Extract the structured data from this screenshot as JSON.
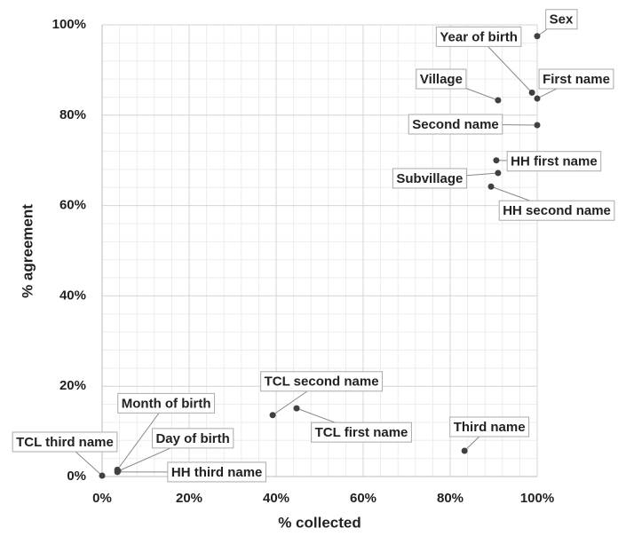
{
  "chart_data": {
    "type": "scatter",
    "xlabel": "% collected",
    "ylabel": "% agreement",
    "point_labels": [
      "Sex",
      "Year of birth",
      "First name",
      "Village",
      "Second name",
      "HH first name",
      "Subvillage",
      "HH second name",
      "TCL second name",
      "TCL first name",
      "Third name",
      "Month of birth",
      "Day of birth",
      "HH third name",
      "TCL third name"
    ],
    "x": [
      100,
      98.8,
      100,
      91,
      100,
      90.6,
      91,
      89.4,
      39.2,
      44.7,
      83.3,
      3.5,
      3.7,
      3.5,
      0
    ],
    "values": [
      97.5,
      85,
      83.7,
      83.3,
      77.8,
      70,
      67.2,
      64.2,
      13.6,
      15.1,
      5.7,
      1.5,
      1.2,
      1.0,
      0.2
    ],
    "color": "#404040",
    "xlim": [
      0,
      100
    ],
    "ylim": [
      0,
      100
    ],
    "xticks": [
      {
        "value": 0,
        "label": "0%"
      },
      {
        "value": 20,
        "label": "20%"
      },
      {
        "value": 40,
        "label": "40%"
      },
      {
        "value": 60,
        "label": "60%"
      },
      {
        "value": 80,
        "label": "80%"
      },
      {
        "value": 100,
        "label": "100%"
      }
    ],
    "yticks": [
      {
        "value": 0,
        "label": "0%"
      },
      {
        "value": 20,
        "label": "20%"
      },
      {
        "value": 40,
        "label": "40%"
      },
      {
        "value": 60,
        "label": "60%"
      },
      {
        "value": 80,
        "label": "80%"
      },
      {
        "value": 100,
        "label": "100%"
      }
    ],
    "grid": true
  }
}
